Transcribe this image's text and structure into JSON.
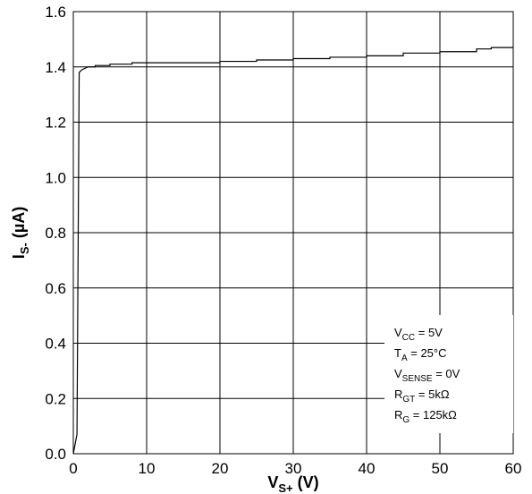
{
  "chart_data": {
    "type": "line",
    "title": "",
    "xlabel": {
      "main": "V",
      "sub": "S+",
      "suffix": " (V)"
    },
    "ylabel": {
      "main": "I",
      "sub": "S-",
      "suffix": " (µA)"
    },
    "xlim": [
      0,
      60
    ],
    "ylim": [
      0.0,
      1.6
    ],
    "x_ticks": [
      0,
      10,
      20,
      30,
      40,
      50,
      60
    ],
    "x_tick_labels": [
      "0",
      "10",
      "20",
      "30",
      "40",
      "50",
      "60"
    ],
    "y_ticks": [
      0.0,
      0.2,
      0.4,
      0.6,
      0.8,
      1.0,
      1.2,
      1.4,
      1.6
    ],
    "y_tick_labels": [
      "0.0",
      "0.2",
      "0.4",
      "0.6",
      "0.8",
      "1.0",
      "1.2",
      "1.4",
      "1.6"
    ],
    "grid": true,
    "conditions": [
      {
        "main": "V",
        "sub": "CC",
        "rest": " = 5V"
      },
      {
        "main": "T",
        "sub": "A",
        "rest": " = 25°C"
      },
      {
        "main": "V",
        "sub": "SENSE",
        "rest": " = 0V"
      },
      {
        "main": "R",
        "sub": "GT",
        "rest": " = 5kΩ"
      },
      {
        "main": "R",
        "sub": "G",
        "rest": " = 125kΩ"
      }
    ],
    "series": [
      {
        "color": "#000000",
        "x": [
          0,
          0.5,
          0.8,
          1.2,
          2,
          3,
          5,
          8,
          10,
          15,
          20,
          25,
          30,
          35,
          40,
          45,
          50,
          55,
          57,
          60
        ],
        "y": [
          0.0,
          0.07,
          1.38,
          1.39,
          1.4,
          1.405,
          1.41,
          1.415,
          1.415,
          1.415,
          1.42,
          1.425,
          1.43,
          1.435,
          1.44,
          1.45,
          1.455,
          1.465,
          1.47,
          1.47
        ]
      }
    ]
  }
}
